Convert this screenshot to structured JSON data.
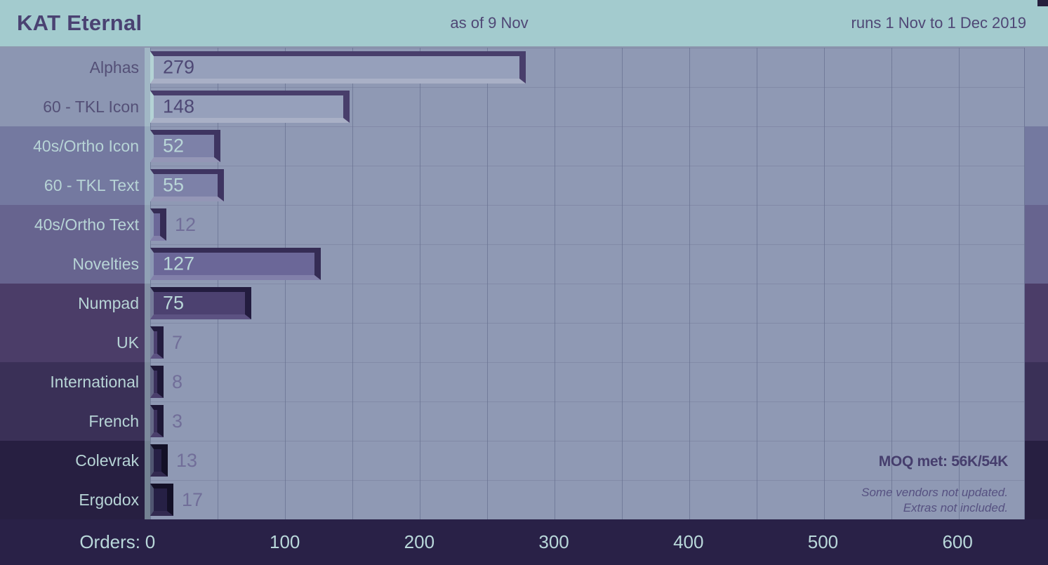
{
  "header": {
    "title": "KAT Eternal",
    "as_of": "as of 9 Nov",
    "runs": "runs 1 Nov to 1 Dec 2019"
  },
  "axis": {
    "label": "Orders:",
    "ticks": [
      0,
      100,
      200,
      300,
      400,
      500,
      600
    ]
  },
  "annotations": {
    "moq": "MOQ met: 56K/54K",
    "note1": "Some vendors not updated.",
    "note2": "Extras not included."
  },
  "chart_data": {
    "type": "bar",
    "orientation": "horizontal",
    "title": "KAT Eternal",
    "subtitle": "as of 9 Nov",
    "period": "runs 1 Nov to 1 Dec 2019",
    "xlabel": "Orders",
    "xlim": [
      0,
      650
    ],
    "xticks": [
      0,
      100,
      200,
      300,
      400,
      500,
      600
    ],
    "grid": "vertical every 50, horizontal per row",
    "legend": "none",
    "categories": [
      "Alphas",
      "60 - TKL Icon",
      "40s/Ortho Icon",
      "60 - TKL Text",
      "40s/Ortho Text",
      "Novelties",
      "Numpad",
      "UK",
      "International",
      "French",
      "Colevrak",
      "Ergodox"
    ],
    "values": [
      279,
      148,
      52,
      55,
      12,
      127,
      75,
      7,
      8,
      3,
      13,
      17
    ],
    "row_group": [
      0,
      0,
      1,
      1,
      2,
      2,
      3,
      3,
      4,
      4,
      5,
      5
    ],
    "annotations": [
      "MOQ met: 56K/54K",
      "Some vendors not updated.",
      "Extras not included."
    ]
  },
  "colors": {
    "header_bg": "#a3cbce",
    "header_text": "#4a4272",
    "plot_bg": "#8f99b4",
    "axis_bg": "#292147",
    "axis_text": "#b9d8da",
    "value_outside_text": "#716e99",
    "label_light": "#b7d4d6",
    "label_dark": "#545077",
    "groups": [
      {
        "band": "#8c96b2",
        "bar_dark": "#483e6b",
        "bar_fill": "#96a0bb",
        "bar_light": "#a9b0c6",
        "bar_cap": "#b4d3d5",
        "value_in": "#4e4875"
      },
      {
        "band": "#7479a0",
        "bar_dark": "#3e3461",
        "bar_fill": "#7d81a8",
        "bar_light": "#9496b6",
        "bar_cap": "rgba(180,211,214,0.5)",
        "value_in": "#b9d6d8"
      },
      {
        "band": "#67648f",
        "bar_dark": "#352c55",
        "bar_fill": "#6b6798",
        "bar_light": "#8280aa",
        "bar_cap": "rgba(180,211,214,0.45)",
        "value_in": "#b9d6d8"
      },
      {
        "band": "#4b3d68",
        "bar_dark": "#231c3f",
        "bar_fill": "#4c4170",
        "bar_light": "#5c5282",
        "bar_cap": "rgba(180,211,214,0.4)",
        "value_in": "#b9d6d8"
      },
      {
        "band": "#3a3057",
        "bar_dark": "#1d1736",
        "bar_fill": "#3b315c",
        "bar_light": "#4a3f6c",
        "bar_cap": "rgba(180,211,214,0.35)",
        "value_in": "#b9d6d8"
      },
      {
        "band": "#271f41",
        "bar_dark": "#131027",
        "bar_fill": "#262045",
        "bar_light": "#322a50",
        "bar_cap": "rgba(180,211,214,0.3)",
        "value_in": "#b9d6d8"
      }
    ]
  }
}
